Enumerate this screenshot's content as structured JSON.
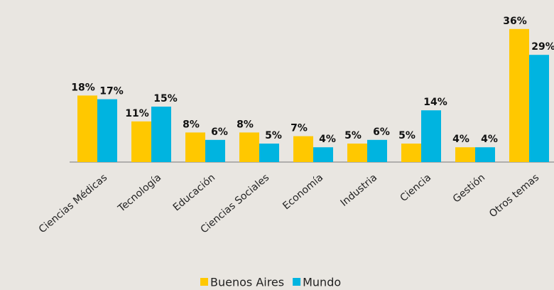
{
  "chart_data": {
    "type": "bar",
    "categories": [
      "Ciencias Médicas",
      "Tecnología",
      "Educación",
      "Ciencias Sociales",
      "Economía",
      "Industria",
      "Ciencia",
      "Gestión",
      "Otros temas"
    ],
    "series": [
      {
        "name": "Buenos Aires",
        "color": "#ffc800",
        "values": [
          18,
          11,
          8,
          8,
          7,
          5,
          5,
          4,
          36
        ],
        "value_labels": [
          "18%",
          "11%",
          "8%",
          "8%",
          "7%",
          "5%",
          "5%",
          "4%",
          "36%"
        ]
      },
      {
        "name": "Mundo",
        "color": "#00b4e0",
        "values": [
          17,
          15,
          6,
          5,
          4,
          6,
          14,
          4,
          29
        ],
        "value_labels": [
          "17%",
          "15%",
          "6%",
          "5%",
          "4%",
          "6%",
          "14%",
          "4%",
          "29%"
        ]
      }
    ]
  }
}
